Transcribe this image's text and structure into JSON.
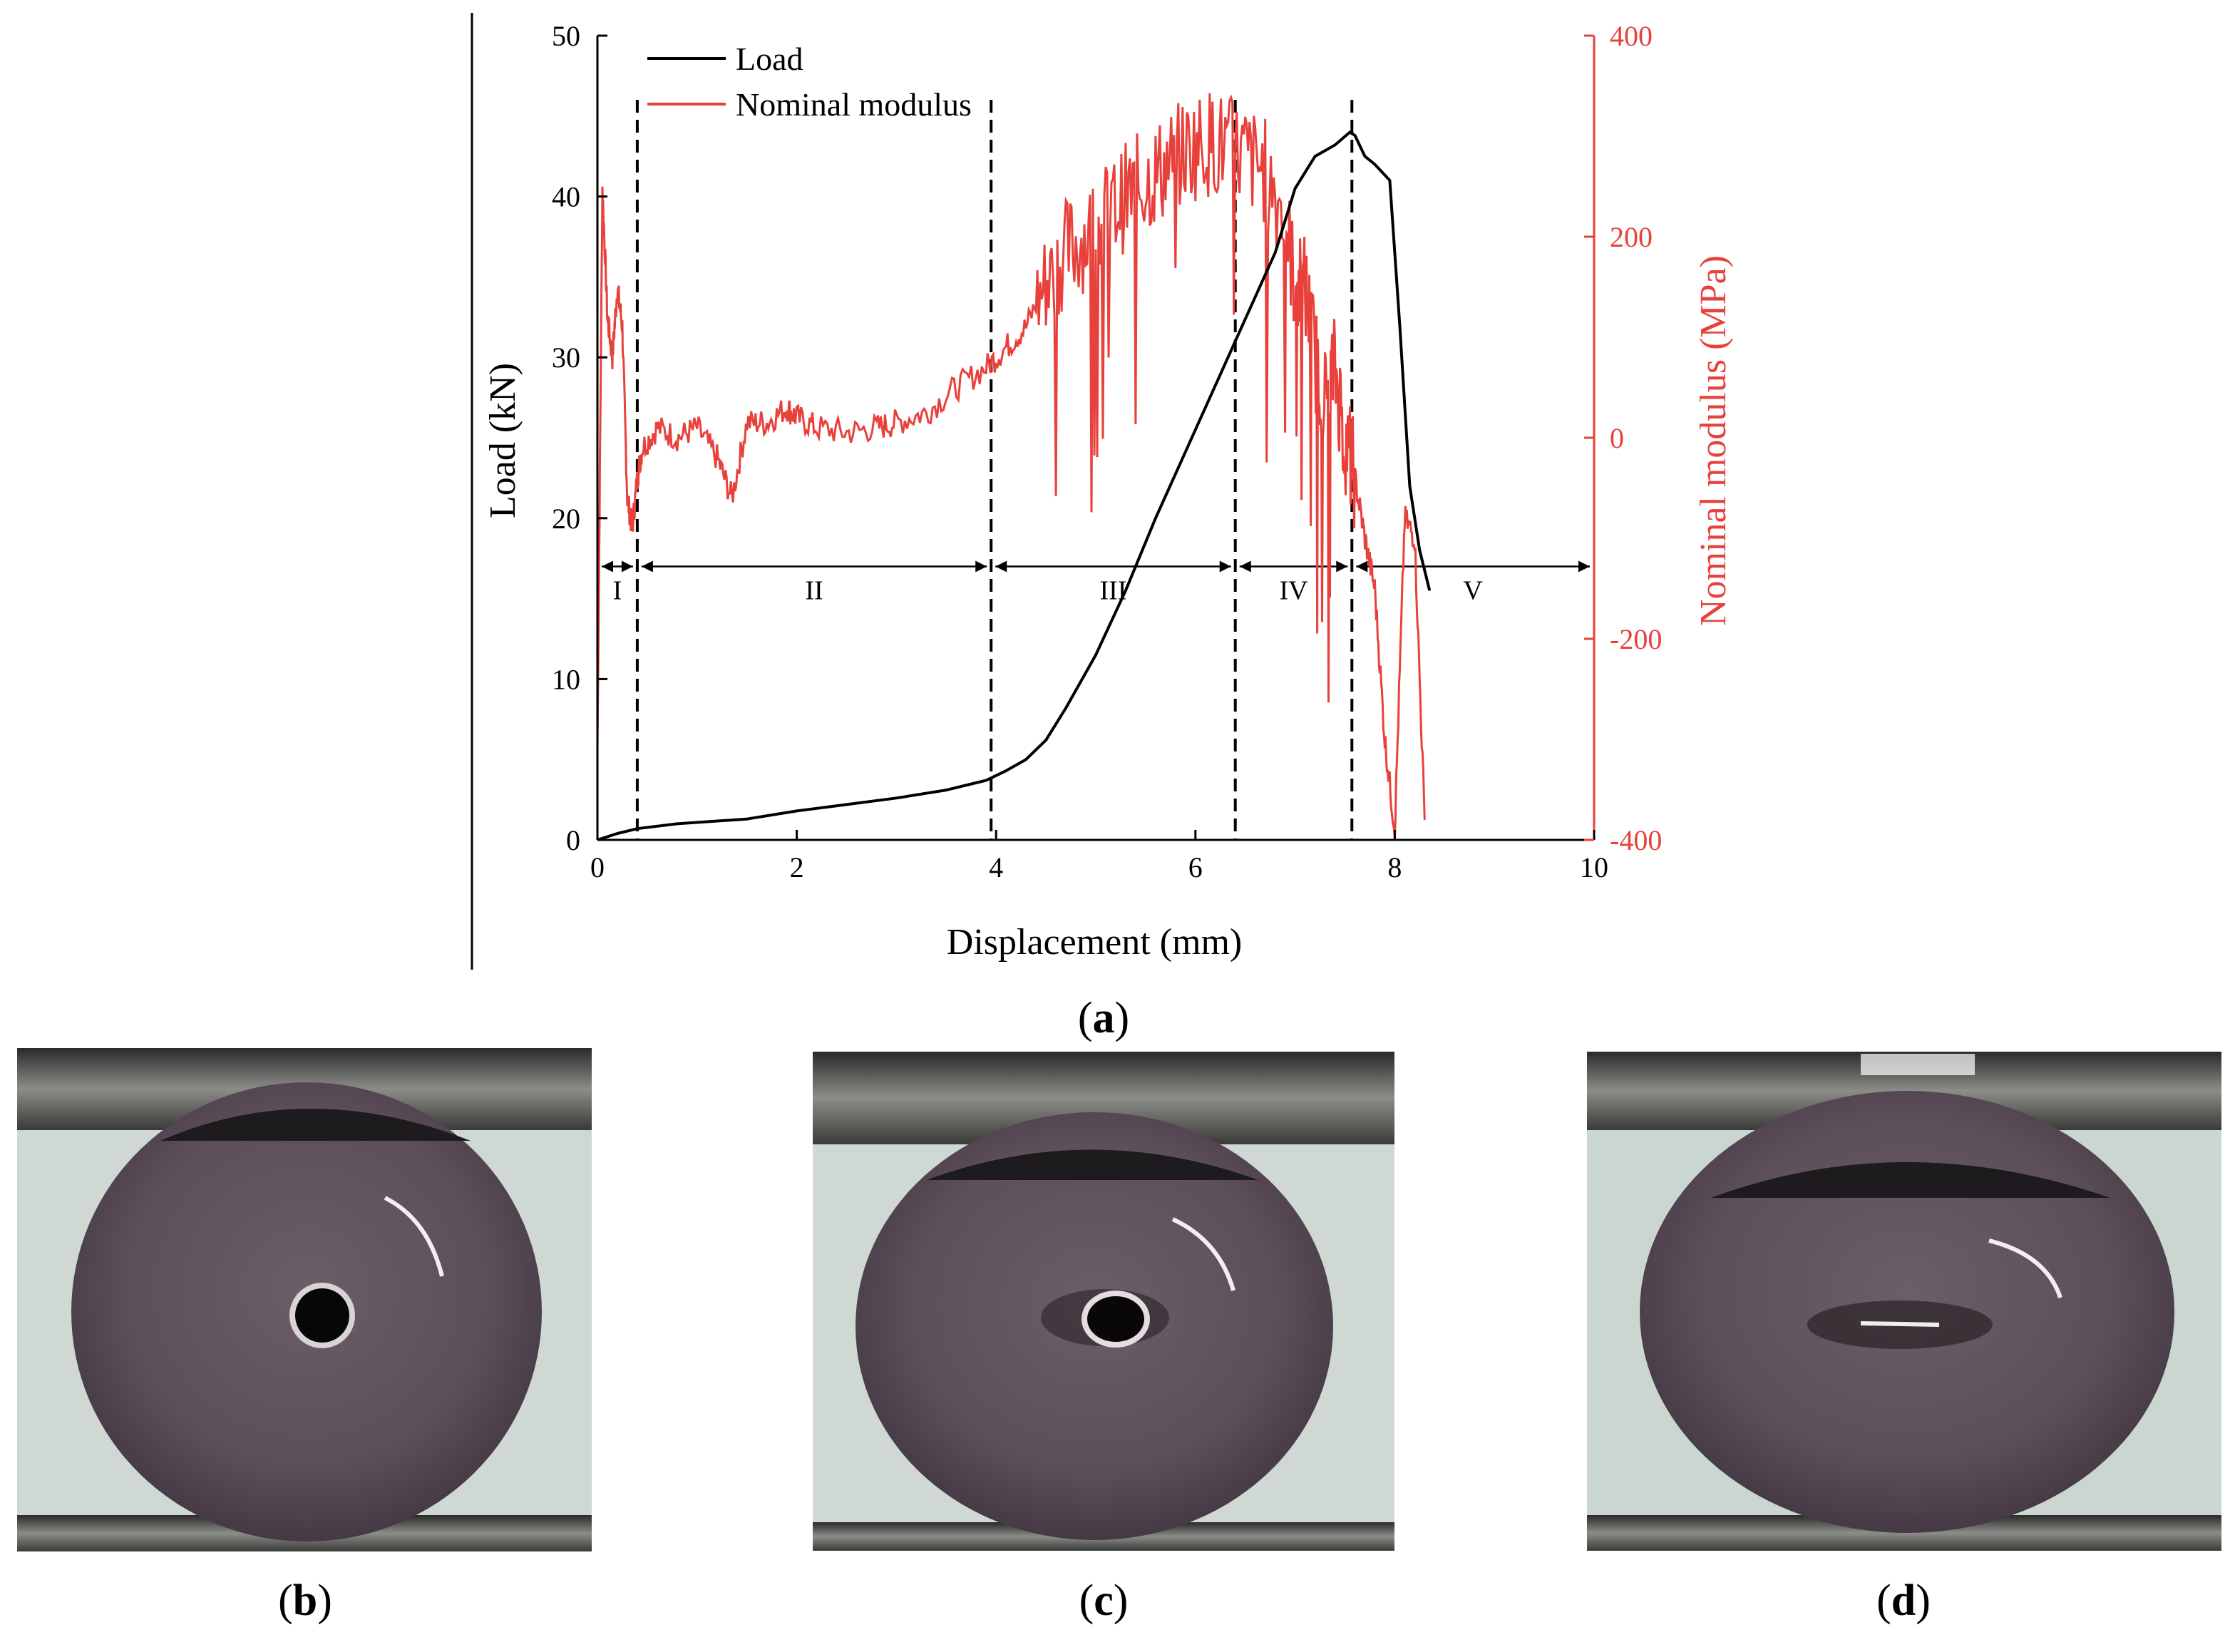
{
  "chart_data": {
    "type": "line",
    "panel_label": "a",
    "xlabel": "Displacement (mm)",
    "ylabel_left": "Load (kN)",
    "ylabel_right": "Nominal modulus (MPa)",
    "xlim": [
      0,
      10
    ],
    "ylim_left": [
      0,
      50
    ],
    "ylim_right": [
      -400,
      400
    ],
    "x_ticks": [
      "0",
      "2",
      "4",
      "6",
      "8",
      "10"
    ],
    "y_left_ticks": [
      "0",
      "10",
      "20",
      "30",
      "40",
      "50"
    ],
    "y_right_ticks": [
      "-400",
      "-200",
      "0",
      "200",
      "400"
    ],
    "legend": [
      "Load",
      "Nominal modulus"
    ],
    "legend_position": "top-left",
    "colors": {
      "load": "#000000",
      "modulus": "#e8413c",
      "axis_right": "#e8413c"
    },
    "stage_boundaries": [
      0.4,
      3.95,
      6.4,
      7.57
    ],
    "stages": [
      {
        "label": "I",
        "from": 0,
        "to": 0.4
      },
      {
        "label": "II",
        "from": 0.4,
        "to": 3.95
      },
      {
        "label": "III",
        "from": 3.95,
        "to": 6.4
      },
      {
        "label": "IV",
        "from": 6.4,
        "to": 7.57
      },
      {
        "label": "V",
        "from": 7.57,
        "to": 10
      }
    ],
    "stage_arrow_load": 17,
    "series": [
      {
        "name": "Load",
        "axis": "left",
        "x": [
          0,
          0.2,
          0.4,
          0.8,
          1.5,
          2.0,
          2.5,
          3.0,
          3.5,
          3.9,
          4.1,
          4.3,
          4.5,
          4.7,
          5.0,
          5.3,
          5.6,
          6.0,
          6.4,
          6.8,
          7.0,
          7.2,
          7.4,
          7.55,
          7.6,
          7.7,
          7.8,
          7.95,
          8.05,
          8.15,
          8.25,
          8.35
        ],
        "values": [
          0,
          0.4,
          0.7,
          1.0,
          1.3,
          1.8,
          2.2,
          2.6,
          3.1,
          3.7,
          4.3,
          5.0,
          6.2,
          8.2,
          11.5,
          15.5,
          20.0,
          25.5,
          31.0,
          36.5,
          40.5,
          42.5,
          43.2,
          44.0,
          43.8,
          42.5,
          42.0,
          41.0,
          32.0,
          22.0,
          18.0,
          15.5
        ]
      },
      {
        "name": "Nominal modulus",
        "axis": "right",
        "x": [
          0.0,
          0.05,
          0.1,
          0.15,
          0.2,
          0.25,
          0.3,
          0.35,
          0.4,
          0.45,
          0.6,
          0.8,
          1.0,
          1.2,
          1.35,
          1.5,
          1.7,
          1.9,
          2.0,
          2.2,
          2.5,
          2.8,
          3.0,
          3.3,
          3.6,
          3.9,
          4.1,
          4.3,
          4.5,
          4.7,
          4.9,
          5.1,
          5.3,
          5.5,
          5.7,
          5.9,
          6.1,
          6.3,
          6.5,
          6.7,
          6.9,
          7.0,
          7.1,
          7.2,
          7.3,
          7.4,
          7.5,
          7.6,
          7.7,
          7.8,
          7.9,
          8.0,
          8.1,
          8.2,
          8.3
        ],
        "values": [
          -310,
          250,
          120,
          80,
          150,
          110,
          -60,
          -90,
          -40,
          -10,
          10,
          0,
          10,
          -20,
          -60,
          15,
          15,
          30,
          20,
          10,
          5,
          10,
          15,
          25,
          50,
          70,
          90,
          110,
          155,
          185,
          200,
          220,
          240,
          255,
          270,
          285,
          295,
          290,
          280,
          265,
          220,
          150,
          150,
          80,
          40,
          70,
          0,
          -40,
          -100,
          -150,
          -300,
          -390,
          -80,
          -100,
          -380
        ]
      }
    ]
  },
  "photos": [
    {
      "panel_label": "b",
      "hole": "open"
    },
    {
      "panel_label": "c",
      "hole": "deformed"
    },
    {
      "panel_label": "d",
      "hole": "closed"
    }
  ]
}
